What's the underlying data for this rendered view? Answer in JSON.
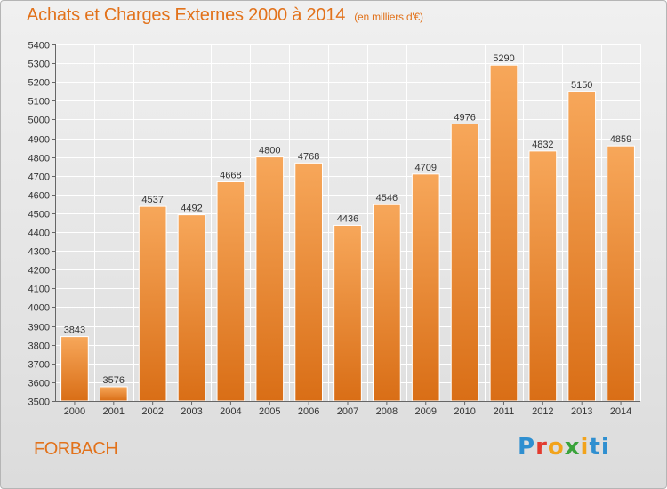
{
  "header": {
    "title": "Achats et Charges Externes 2000 à 2014",
    "unit": "(en milliers d'€)"
  },
  "footer": {
    "city": "FORBACH",
    "brand": "Proxiti",
    "brand_letters": [
      "P",
      "r",
      "o",
      "x",
      "i",
      "ti"
    ]
  },
  "colors": {
    "title": "#e2721b",
    "bar_top": "#f7a75a",
    "bar_bottom": "#d96e16",
    "grid": "#ffffff",
    "text": "#333333"
  },
  "chart_data": {
    "type": "bar",
    "title": "Achats et Charges Externes 2000 à 2014",
    "xlabel": "",
    "ylabel": "",
    "categories": [
      "2000",
      "2001",
      "2002",
      "2003",
      "2004",
      "2005",
      "2006",
      "2007",
      "2008",
      "2009",
      "2010",
      "2011",
      "2012",
      "2013",
      "2014"
    ],
    "values": [
      3843,
      3576,
      4537,
      4492,
      4668,
      4800,
      4768,
      4436,
      4546,
      4709,
      4976,
      5290,
      4832,
      5150,
      4859
    ],
    "ylim": [
      3500,
      5400
    ],
    "yticks": [
      3500,
      3600,
      3700,
      3800,
      3900,
      4000,
      4100,
      4200,
      4300,
      4400,
      4500,
      4600,
      4700,
      4800,
      4900,
      5000,
      5100,
      5200,
      5300,
      5400
    ],
    "grid": true,
    "data_labels": true
  }
}
